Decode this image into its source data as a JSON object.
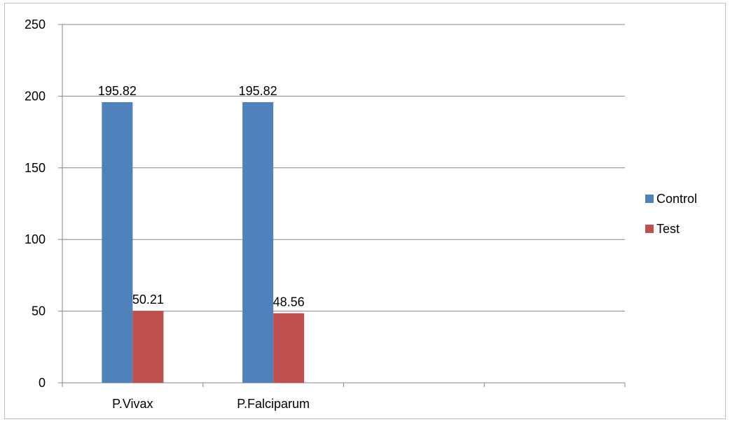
{
  "chart_data": {
    "type": "bar",
    "categories": [
      "P.Vivax",
      "P.Falciparum",
      "",
      ""
    ],
    "series": [
      {
        "name": "Control",
        "values": [
          195.82,
          195.82,
          null,
          null
        ],
        "color": "#4f81bd"
      },
      {
        "name": "Test",
        "values": [
          50.21,
          48.56,
          null,
          null
        ],
        "color": "#c0504d"
      }
    ],
    "data_labels": {
      "Control": [
        "195.82",
        "195.82"
      ],
      "Test": [
        "50.21",
        "48.56"
      ]
    },
    "yticks": [
      "0",
      "50",
      "100",
      "150",
      "200",
      "250"
    ],
    "ylim": [
      0,
      250
    ],
    "grid": true,
    "legend": "right",
    "title": "",
    "xlabel": "",
    "ylabel": ""
  }
}
